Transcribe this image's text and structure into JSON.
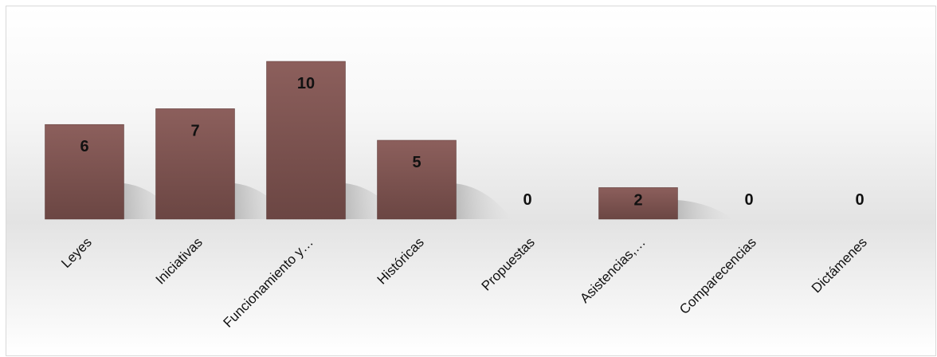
{
  "chart_data": {
    "type": "bar",
    "title": "",
    "xlabel": "",
    "ylabel": "",
    "categories": [
      "Leyes",
      "Iniciativas",
      "Funcionamiento y…",
      "Históricas",
      "Propuestas",
      "Asistencias,…",
      "Comparecencias",
      "Dictámenes"
    ],
    "values": [
      6,
      7,
      10,
      5,
      0,
      2,
      0,
      0
    ],
    "ylim": [
      0,
      10
    ],
    "grid": false,
    "legend": "none",
    "data_labels": true,
    "colors": {
      "bar_top": "#8c5f5c",
      "bar_bottom": "#6b4643",
      "bar_edge": "#5a3a38",
      "text": "#111111"
    }
  }
}
